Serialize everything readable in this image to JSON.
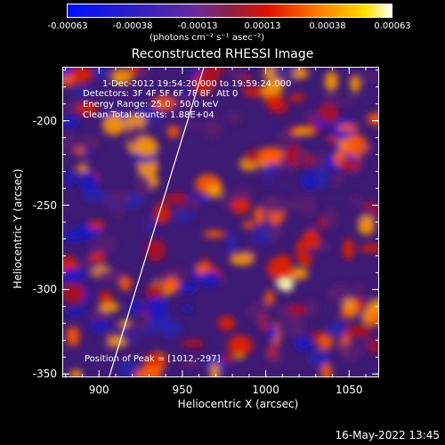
{
  "colorbar": {
    "ticks": [
      "-0.00063",
      "-0.00038",
      "-0.00013",
      "0.00013",
      "0.00038",
      "0.00063"
    ],
    "unit": "(photons cm⁻² s⁻¹ asec⁻²)"
  },
  "chart_data": {
    "type": "heatmap",
    "title": "Reconstructed RHESSI Image",
    "xlabel": "Heliocentric X (arcsec)",
    "ylabel": "Heliocentric Y (arcsec)",
    "xlim": [
      878,
      1068
    ],
    "ylim": [
      -352,
      -168
    ],
    "xticks": [
      900,
      950,
      1000,
      1050
    ],
    "yticks": [
      -200,
      -250,
      -300,
      -350
    ],
    "zlim": [
      -0.00063,
      0.00063
    ],
    "colormap": "blue-purple-red-yellow-white",
    "peak": [
      1012,
      -297
    ],
    "limb_line": [
      [
        906,
        -352
      ],
      [
        963,
        -168
      ]
    ],
    "annotations": {
      "time": "1-Dec-2012 19:54:20.000 to 19:59:24.000",
      "detectors": "Detectors: 3F 4F 5F 6F 7F 8F, Att 0",
      "energy": "Energy Range: 25.0 - 50.0 keV",
      "clean": "Clean    Total counts: 1.88E+04",
      "peak_label": "Position of Peak = [1012,-297]"
    }
  },
  "footer": {
    "date": "16-May-2022 13:45"
  }
}
